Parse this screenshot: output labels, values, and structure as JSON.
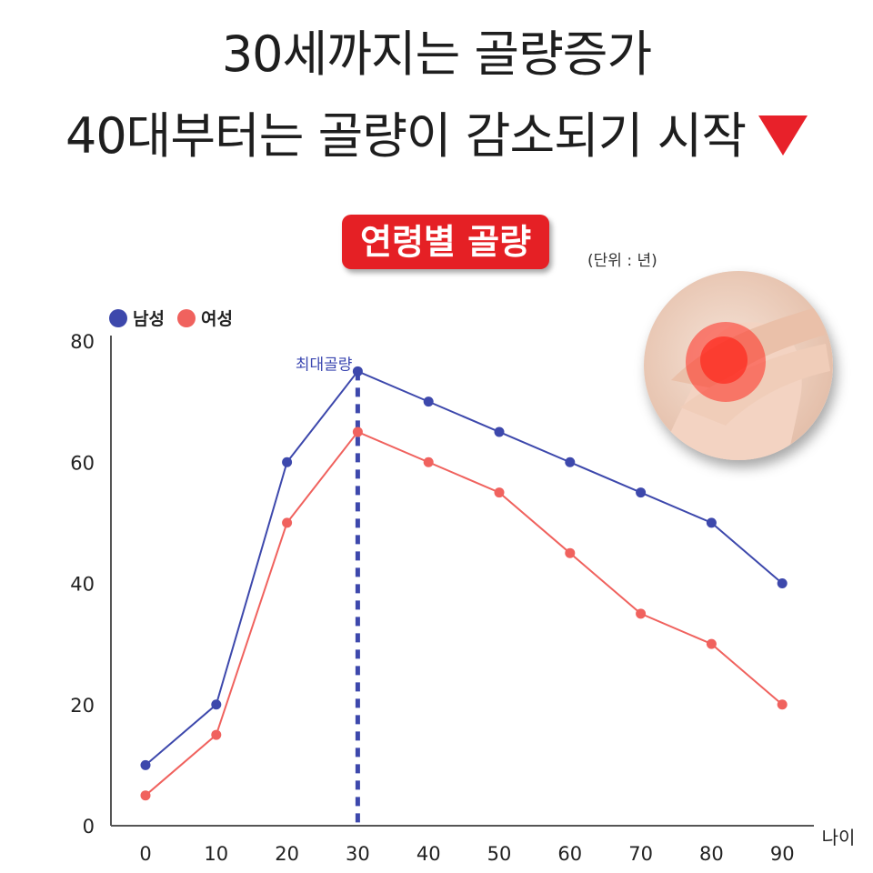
{
  "headline": {
    "line1": "30세까지는 골량증가",
    "line2": "40대부터는 골량이 감소되기 시작",
    "icon": "red-down-triangle-icon"
  },
  "badge": {
    "text": "연령별 골량"
  },
  "unit_note": "(단위 : 년)",
  "colors": {
    "male": "#3d48ac",
    "female": "#f0625e",
    "accent": "#e52025"
  },
  "chart_data": {
    "type": "line",
    "x": [
      0,
      10,
      20,
      30,
      40,
      50,
      60,
      70,
      80,
      90
    ],
    "xlabel": "나이",
    "ylabel": "",
    "xlim": [
      -5,
      95
    ],
    "ylim": [
      0,
      80
    ],
    "yticks": [
      0,
      20,
      40,
      60,
      80
    ],
    "xticks": [
      0,
      10,
      20,
      30,
      40,
      50,
      60,
      70,
      80,
      90
    ],
    "series": [
      {
        "name": "남성",
        "color": "#3d48ac",
        "values": [
          10,
          20,
          60,
          75,
          70,
          65,
          60,
          55,
          50,
          40
        ]
      },
      {
        "name": "여성",
        "color": "#f0625e",
        "values": [
          5,
          15,
          50,
          65,
          60,
          55,
          45,
          35,
          30,
          20
        ]
      }
    ],
    "annotation": {
      "text": "최대골량",
      "x": 30,
      "style": "dashed-vertical-line"
    },
    "legend_position": "top-left",
    "grid": false
  }
}
